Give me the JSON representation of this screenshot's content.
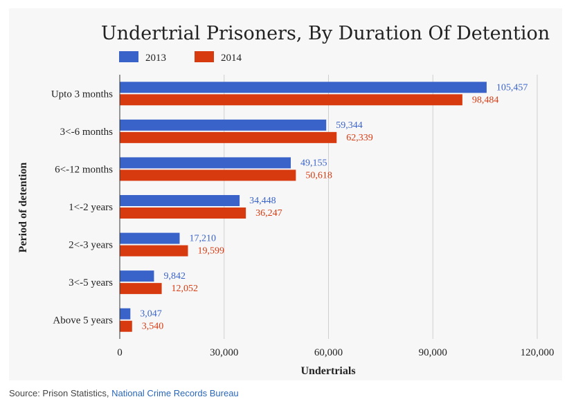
{
  "chart_data": {
    "type": "bar",
    "orientation": "horizontal",
    "title": "Undertrial Prisoners, By Duration Of Detention",
    "xlabel": "Undertrials",
    "ylabel": "Period of detention",
    "categories": [
      "Upto 3 months",
      "3<-6 months",
      "6<-12 months",
      "1<-2 years",
      "2<-3 years",
      "3<-5 years",
      "Above 5 years"
    ],
    "series": [
      {
        "name": "2013",
        "color": "#3a63c9",
        "values": [
          105457,
          59344,
          49155,
          34448,
          17210,
          9842,
          3047
        ],
        "labels": [
          "105,457",
          "59,344",
          "49,155",
          "34,448",
          "17,210",
          "9,842",
          "3,047"
        ]
      },
      {
        "name": "2014",
        "color": "#d83a10",
        "values": [
          98484,
          62339,
          50618,
          36247,
          19599,
          12052,
          3540
        ],
        "labels": [
          "98,484",
          "62,339",
          "50,618",
          "36,247",
          "19,599",
          "12,052",
          "3,540"
        ]
      }
    ],
    "xlim": [
      0,
      120000
    ],
    "xticks": [
      0,
      30000,
      60000,
      90000,
      120000
    ],
    "xtick_labels": [
      "0",
      "30,000",
      "60,000",
      "90,000",
      "120,000"
    ],
    "grid": true,
    "legend_position": "top-left"
  },
  "source": {
    "prefix": "Source: Prison Statistics,",
    "link_text": "National Crime Records Bureau"
  }
}
